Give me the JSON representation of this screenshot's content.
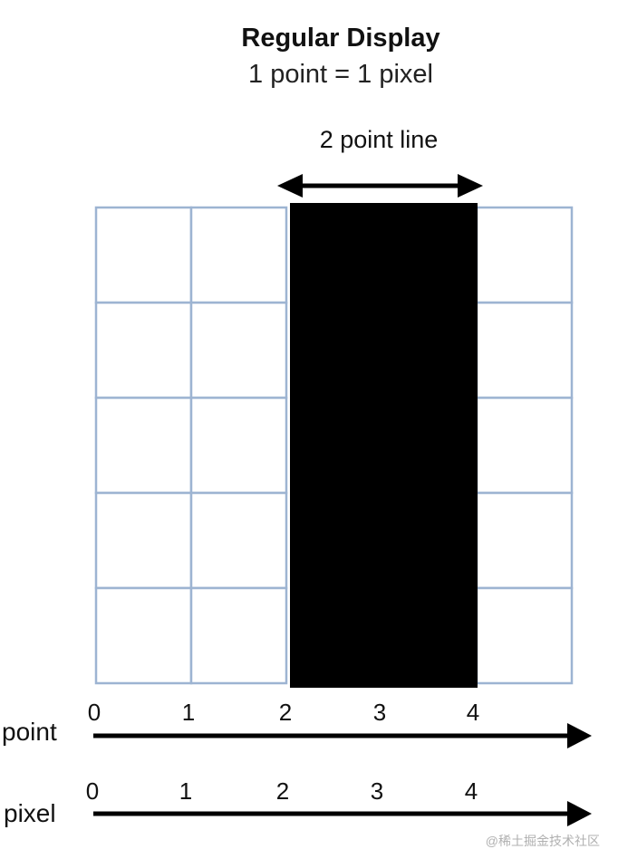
{
  "title": "Regular Display",
  "subtitle": "1 point = 1 pixel",
  "highlight_label": "2 point line",
  "colors": {
    "grid": "#9db4d2",
    "line_fill": "#000000",
    "arrow": "#000000"
  },
  "grid": {
    "columns": 5,
    "rows": 5,
    "highlighted_columns": [
      2,
      3
    ]
  },
  "axes": [
    {
      "name": "point",
      "ticks": [
        "0",
        "1",
        "2",
        "3",
        "4"
      ]
    },
    {
      "name": "pixel",
      "ticks": [
        "0",
        "1",
        "2",
        "3",
        "4"
      ]
    }
  ],
  "watermark": "@稀土掘金技术社区"
}
